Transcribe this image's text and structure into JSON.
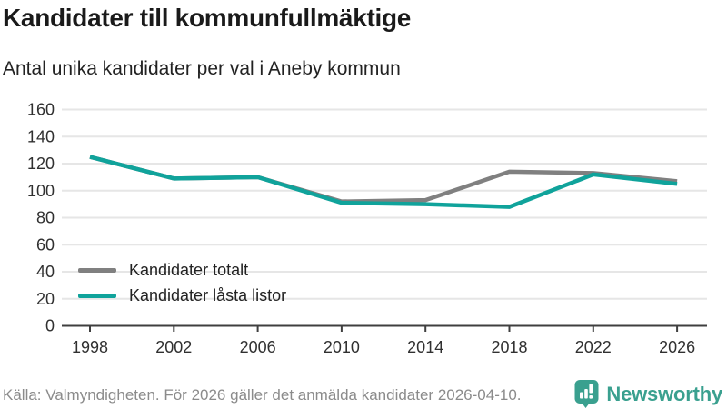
{
  "header": {
    "title": "Kandidater till kommunfullmäktige",
    "subtitle": "Antal unika kandidater per val i Aneby kommun"
  },
  "chart_data": {
    "type": "line",
    "categories": [
      "1998",
      "2002",
      "2006",
      "2010",
      "2014",
      "2018",
      "2022",
      "2026"
    ],
    "series": [
      {
        "name": "Kandidater totalt",
        "color": "#808080",
        "values": [
          125,
          109,
          110,
          92,
          93,
          114,
          113,
          107
        ]
      },
      {
        "name": "Kandidater låsta listor",
        "color": "#10a39b",
        "values": [
          125,
          109,
          110,
          91,
          90,
          88,
          112,
          105
        ]
      }
    ],
    "title": "Kandidater till kommunfullmäktige",
    "subtitle": "Antal unika kandidater per val i Aneby kommun",
    "xlabel": "",
    "ylabel": "",
    "ylim": [
      0,
      160
    ],
    "ytick_step": 20,
    "grid": true,
    "legend_position": "inside-bottom-left"
  },
  "footer": {
    "source": "Källa: Valmyndigheten. För 2026 gäller det anmälda kandidater 2026-04-10.",
    "brand": "Newsworthy"
  },
  "colors": {
    "grid": "#e6e6e6",
    "axis": "#3f3f3f",
    "tick_text": "#303030",
    "title_text": "#1a1a1a",
    "muted_text": "#8b8b8b",
    "brand_teal": "#3aa08f"
  }
}
